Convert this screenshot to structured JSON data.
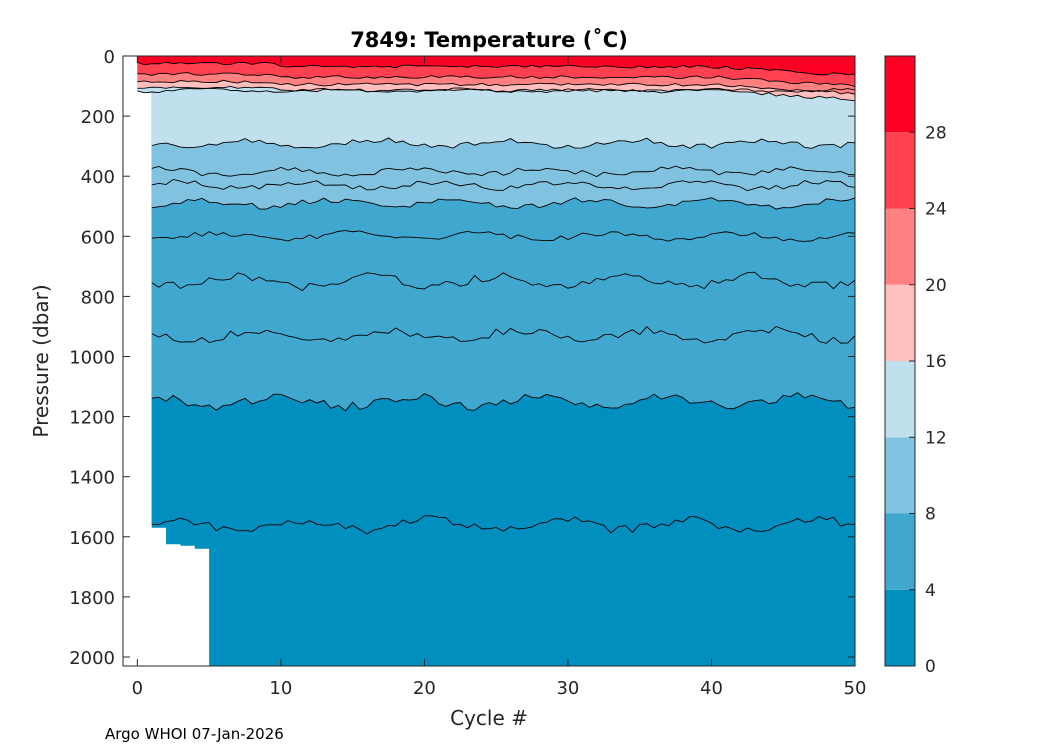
{
  "chart_data": {
    "type": "filled-contour",
    "title": "7849:  Temperature (˚C)",
    "xlabel": "Cycle #",
    "ylabel": "Pressure (dbar)",
    "xlim": [
      -1,
      50
    ],
    "ylim": [
      2030,
      0
    ],
    "xticks": [
      0,
      10,
      20,
      30,
      40,
      50
    ],
    "yticks": [
      0,
      200,
      400,
      600,
      800,
      1000,
      1200,
      1400,
      1600,
      1800,
      2000
    ],
    "colorbar": {
      "range": [
        0,
        32
      ],
      "ticks": [
        0,
        4,
        8,
        12,
        16,
        20,
        24,
        28
      ],
      "levels": [
        {
          "from": 0,
          "to": 4,
          "color": "#008FBF"
        },
        {
          "from": 4,
          "to": 8,
          "color": "#40A8CF"
        },
        {
          "from": 8,
          "to": 12,
          "color": "#80C2DF"
        },
        {
          "from": 12,
          "to": 16,
          "color": "#BFE0EC"
        },
        {
          "from": 16,
          "to": 20,
          "color": "#FFBFBF"
        },
        {
          "from": 20,
          "to": 24,
          "color": "#FF8080"
        },
        {
          "from": 24,
          "to": 28,
          "color": "#FF4050"
        },
        {
          "from": 28,
          "to": 32,
          "color": "#FF0025"
        }
      ]
    },
    "isotherms_dbar": [
      {
        "temp_c": 3,
        "mean_pressure": 1560
      },
      {
        "temp_c": 4,
        "mean_pressure": 1150
      },
      {
        "temp_c": 5,
        "mean_pressure": 930
      },
      {
        "temp_c": 6,
        "mean_pressure": 750
      },
      {
        "temp_c": 7,
        "mean_pressure": 600
      },
      {
        "temp_c": 8,
        "mean_pressure": 490
      },
      {
        "temp_c": 9,
        "mean_pressure": 430
      },
      {
        "temp_c": 10,
        "mean_pressure": 385
      },
      {
        "temp_c": 12,
        "mean_pressure": 290
      },
      {
        "temp_c": 14,
        "mean_pressure": 115
      },
      {
        "temp_c": 16,
        "mean_pressure": 95
      },
      {
        "temp_c": 20,
        "mean_pressure": 75
      },
      {
        "temp_c": 24,
        "mean_pressure": 50
      },
      {
        "temp_c": 28,
        "mean_pressure": 15
      }
    ],
    "profile_max_pressure": [
      {
        "cycle": 0,
        "pressure": 110
      },
      {
        "cycle": 1,
        "pressure": 1570
      },
      {
        "cycle": 2,
        "pressure": 1625
      },
      {
        "cycle": 3,
        "pressure": 1630
      },
      {
        "cycle": 4,
        "pressure": 1640
      },
      {
        "cycle": 5,
        "pressure": 2030
      },
      {
        "cycle": 50,
        "pressure": 2020
      }
    ]
  },
  "footer": "Argo WHOI 07-Jan-2026"
}
